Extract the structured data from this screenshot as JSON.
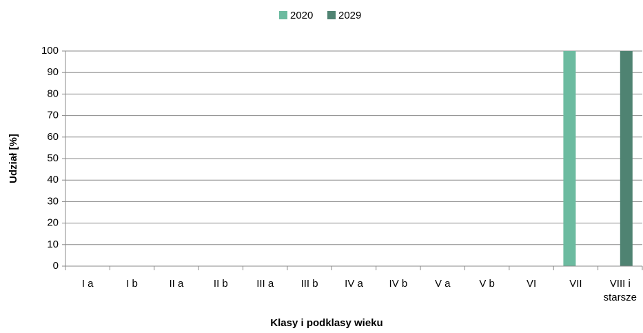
{
  "chart_data": {
    "type": "bar",
    "x_label": "Klasy i podklasy wieku",
    "y_label": "Udział [%]",
    "categories": [
      "I a",
      "I b",
      "II a",
      "II b",
      "III a",
      "III b",
      "IV a",
      "IV b",
      "V a",
      "V b",
      "VI",
      "VII",
      "VIII i starsze"
    ],
    "series": [
      {
        "name": "2020",
        "color": "#6cbba0",
        "values": [
          0,
          0,
          0,
          0,
          0,
          0,
          0,
          0,
          0,
          0,
          0,
          100,
          0
        ]
      },
      {
        "name": "2029",
        "color": "#4f8372",
        "values": [
          0,
          0,
          0,
          0,
          0,
          0,
          0,
          0,
          0,
          0,
          0,
          0,
          100
        ]
      }
    ],
    "ylim": [
      0,
      100
    ],
    "yticks": [
      0,
      10,
      20,
      30,
      40,
      50,
      60,
      70,
      80,
      90,
      100
    ],
    "grid": true,
    "legend": "top"
  }
}
